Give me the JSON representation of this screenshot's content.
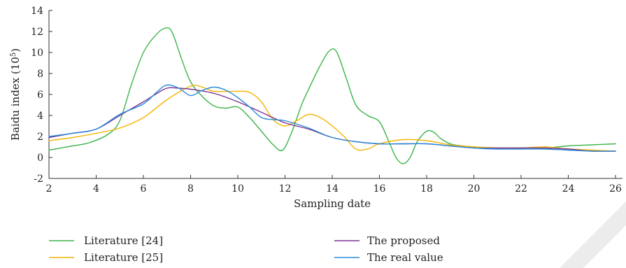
{
  "chart_data": {
    "type": "line",
    "xlabel": "Sampling date",
    "ylabel_main": "Baidu index (10",
    "ylabel_sup": "5",
    "ylabel_end": ")",
    "xlim": [
      2,
      26
    ],
    "ylim": [
      -2,
      14
    ],
    "xticks": [
      2,
      4,
      6,
      8,
      10,
      12,
      14,
      16,
      18,
      20,
      22,
      24,
      26
    ],
    "yticks": [
      -2,
      0,
      2,
      4,
      6,
      8,
      10,
      12,
      14
    ],
    "legend_position": "bottom",
    "series": [
      {
        "name": "Literature [24]",
        "color": "#3cb44b",
        "x": [
          2,
          3,
          3.7,
          4.5,
          5,
          5.5,
          6,
          6.5,
          6.9,
          7.2,
          7.6,
          8,
          8.5,
          9,
          9.5,
          10,
          10.5,
          11,
          11.5,
          11.9,
          12.3,
          12.7,
          13,
          13.5,
          13.9,
          14.2,
          14.6,
          15,
          15.5,
          16,
          16.4,
          16.7,
          17,
          17.3,
          17.6,
          18,
          18.3,
          18.6,
          19,
          19.5,
          20,
          21,
          22,
          23,
          24,
          25,
          26
        ],
        "y": [
          0.7,
          1.1,
          1.4,
          2.2,
          3.5,
          7,
          10,
          11.6,
          12.3,
          12,
          9.5,
          7.2,
          5.8,
          4.9,
          4.7,
          4.8,
          3.8,
          2.5,
          1.2,
          0.7,
          2.5,
          5,
          6.5,
          8.8,
          10.2,
          10,
          7.5,
          5,
          4,
          3.4,
          1.5,
          0,
          -0.6,
          0,
          1.5,
          2.5,
          2.4,
          1.8,
          1.3,
          1.1,
          1.0,
          0.9,
          0.9,
          0.9,
          1.1,
          1.2,
          1.3
        ]
      },
      {
        "name": "Literature [25]",
        "color": "#f4b400",
        "x": [
          2,
          3,
          4,
          5,
          6,
          7,
          8,
          8.5,
          9,
          10,
          10.5,
          11,
          11.5,
          12,
          12.5,
          13,
          13.5,
          14,
          14.5,
          15,
          15.5,
          16,
          17,
          18,
          19,
          20,
          21,
          22,
          23,
          24,
          25,
          26
        ],
        "y": [
          1.6,
          1.9,
          2.3,
          2.8,
          3.8,
          5.5,
          6.8,
          6.7,
          6.3,
          6.3,
          6.2,
          5.3,
          3.6,
          3.0,
          3.5,
          4.1,
          3.8,
          3.0,
          2.0,
          0.8,
          0.8,
          1.3,
          1.7,
          1.6,
          1.2,
          1.0,
          0.9,
          0.9,
          1.0,
          0.8,
          0.7,
          0.6
        ]
      },
      {
        "name": "The proposed",
        "color": "#7b3294",
        "x": [
          2,
          3,
          4,
          5,
          6,
          6.5,
          7,
          7.5,
          8,
          9,
          10,
          11,
          12,
          13,
          14,
          15,
          16,
          17,
          18,
          19,
          20,
          21,
          22,
          23,
          24,
          25,
          26
        ],
        "y": [
          1.9,
          2.3,
          2.7,
          4.0,
          5.3,
          6.0,
          6.6,
          6.6,
          6.5,
          6.1,
          5.3,
          4.3,
          3.3,
          2.7,
          1.9,
          1.5,
          1.3,
          1.3,
          1.3,
          1.1,
          0.9,
          0.9,
          0.9,
          0.9,
          0.8,
          0.6,
          0.6
        ]
      },
      {
        "name": "The real value",
        "color": "#2b8cd8",
        "x": [
          2,
          3,
          4,
          5,
          6,
          6.6,
          7,
          7.5,
          8,
          8.5,
          9,
          9.5,
          10,
          10.5,
          11,
          11.5,
          12,
          13,
          14,
          15,
          16,
          17,
          18,
          19,
          20,
          21,
          22,
          23,
          24,
          25,
          26
        ],
        "y": [
          2.0,
          2.3,
          2.7,
          4.1,
          5.1,
          6.3,
          6.9,
          6.6,
          5.9,
          6.4,
          6.7,
          6.4,
          5.7,
          4.8,
          3.8,
          3.6,
          3.5,
          2.8,
          1.9,
          1.5,
          1.3,
          1.3,
          1.3,
          1.1,
          0.9,
          0.8,
          0.8,
          0.8,
          0.7,
          0.6,
          0.6
        ]
      }
    ]
  }
}
